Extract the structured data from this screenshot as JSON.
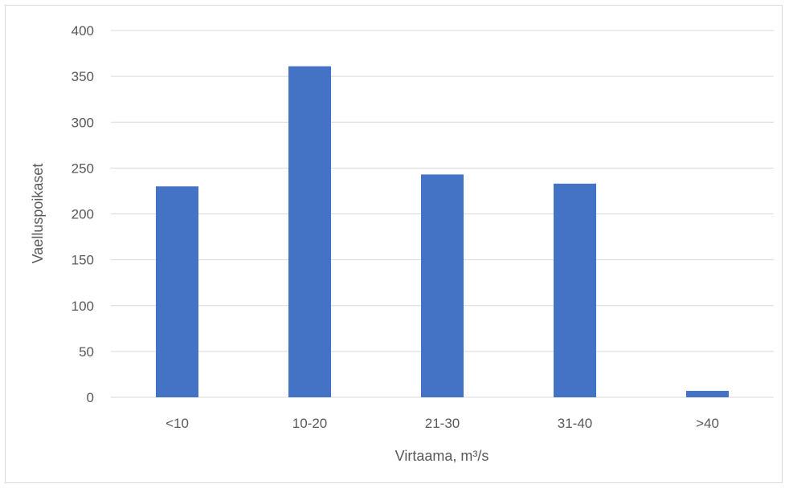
{
  "chart_data": {
    "type": "bar",
    "title": "",
    "xlabel": "Virtaama, m³/s",
    "ylabel": "Vaelluspoikaset",
    "categories": [
      "<10",
      "10-20",
      "21-30",
      "31-40",
      ">40"
    ],
    "values": [
      230,
      361,
      243,
      233,
      7
    ],
    "ylim": [
      0,
      400
    ],
    "yticks": [
      0,
      50,
      100,
      150,
      200,
      250,
      300,
      350,
      400
    ],
    "grid": true,
    "legend": "none",
    "bar_color": "#4472C4",
    "grid_color": "#d9d9d9"
  }
}
